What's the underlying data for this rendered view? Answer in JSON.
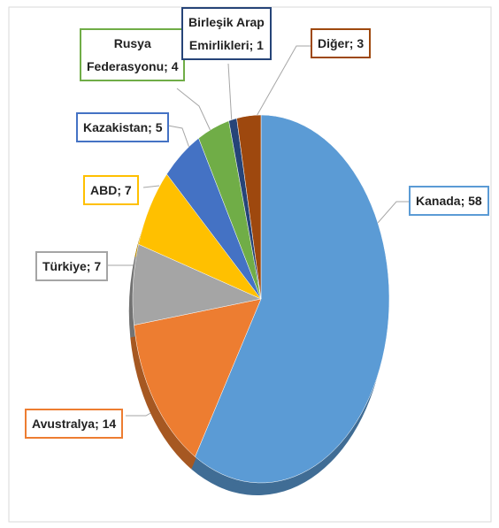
{
  "chart_data": {
    "type": "pie",
    "values": [
      58,
      14,
      7,
      7,
      5,
      4,
      1,
      3
    ],
    "value_labels": [
      "Kanada; 58",
      "Avustralya; 14",
      "Türkiye; 7",
      "ABD; 7",
      "Kazakistan; 5",
      "Rusya\nFederasyonu; 4",
      "Birleşik Arap\nEmirlikleri; 1",
      "Diğer; 3"
    ],
    "colors": [
      "#5b9bd5",
      "#ed7d31",
      "#a5a5a5",
      "#ffc000",
      "#4472c4",
      "#70ad47",
      "#264478",
      "#9e480e"
    ]
  }
}
